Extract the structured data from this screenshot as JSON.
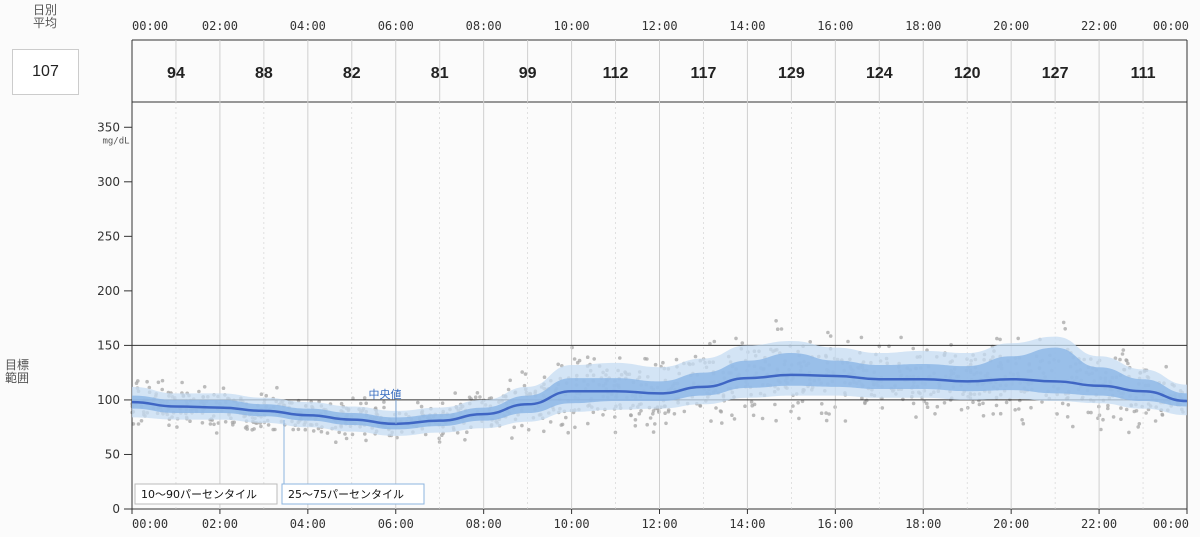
{
  "labels": {
    "daily_avg_title": "日別\n平均",
    "daily_avg_value": "107",
    "unit": "mg/dL",
    "target_range_title": "目標\n範囲",
    "median_label": "中央値",
    "legend_10_90": "10～90パーセンタイル",
    "legend_25_75": "25～75パーセンタイル"
  },
  "colors": {
    "median": "#3f66c4",
    "band_25_75": "#8bb5e6",
    "band_10_90": "#c6dcf3",
    "points": "#a6a6a6",
    "grid": "#cfcfcf",
    "axis": "#333333"
  },
  "chart_data": {
    "type": "line",
    "title": "",
    "xlabel": "",
    "ylabel": "mg/dL",
    "x_ticks": [
      "00:00",
      "02:00",
      "04:00",
      "06:00",
      "08:00",
      "10:00",
      "12:00",
      "14:00",
      "16:00",
      "18:00",
      "20:00",
      "22:00",
      "00:00"
    ],
    "ylim": [
      0,
      375
    ],
    "y_ticks": [
      0,
      50,
      100,
      150,
      200,
      250,
      300,
      350
    ],
    "target_range": [
      100,
      150
    ],
    "hourly_averages": [
      94,
      88,
      82,
      81,
      99,
      112,
      117,
      129,
      124,
      120,
      127,
      111
    ],
    "grid": true,
    "series": [
      {
        "name": "中央値",
        "x_hours": [
          0,
          1,
          2,
          3,
          4,
          5,
          6,
          7,
          8,
          9,
          10,
          11,
          12,
          13,
          14,
          15,
          16,
          17,
          18,
          19,
          20,
          21,
          22,
          23,
          24
        ],
        "values": [
          98,
          94,
          93,
          90,
          86,
          82,
          78,
          81,
          87,
          96,
          108,
          108,
          106,
          112,
          120,
          123,
          122,
          119,
          119,
          117,
          119,
          117,
          113,
          108,
          99
        ]
      },
      {
        "name": "25～75パーセンタイル",
        "x_hours": [
          0,
          1,
          2,
          3,
          4,
          5,
          6,
          7,
          8,
          9,
          10,
          11,
          12,
          13,
          14,
          15,
          16,
          17,
          18,
          19,
          20,
          21,
          22,
          23,
          24
        ],
        "lower": [
          92,
          88,
          88,
          85,
          81,
          77,
          73,
          76,
          81,
          88,
          97,
          99,
          99,
          104,
          111,
          113,
          112,
          110,
          110,
          108,
          109,
          106,
          104,
          99,
          94
        ],
        "upper": [
          104,
          100,
          100,
          96,
          92,
          88,
          84,
          87,
          93,
          104,
          120,
          120,
          117,
          125,
          136,
          143,
          136,
          132,
          133,
          131,
          140,
          148,
          130,
          119,
          106
        ]
      },
      {
        "name": "10～90パーセンタイル",
        "x_hours": [
          0,
          1,
          2,
          3,
          4,
          5,
          6,
          7,
          8,
          9,
          10,
          11,
          12,
          13,
          14,
          15,
          16,
          17,
          18,
          19,
          20,
          21,
          22,
          23,
          24
        ],
        "lower": [
          84,
          82,
          82,
          79,
          75,
          71,
          67,
          70,
          74,
          80,
          89,
          91,
          92,
          96,
          102,
          104,
          104,
          102,
          102,
          100,
          101,
          99,
          97,
          92,
          86
        ],
        "upper": [
          112,
          106,
          106,
          102,
          98,
          94,
          90,
          93,
          100,
          112,
          132,
          134,
          130,
          138,
          150,
          154,
          148,
          143,
          145,
          143,
          152,
          158,
          140,
          128,
          114
        ]
      }
    ]
  }
}
